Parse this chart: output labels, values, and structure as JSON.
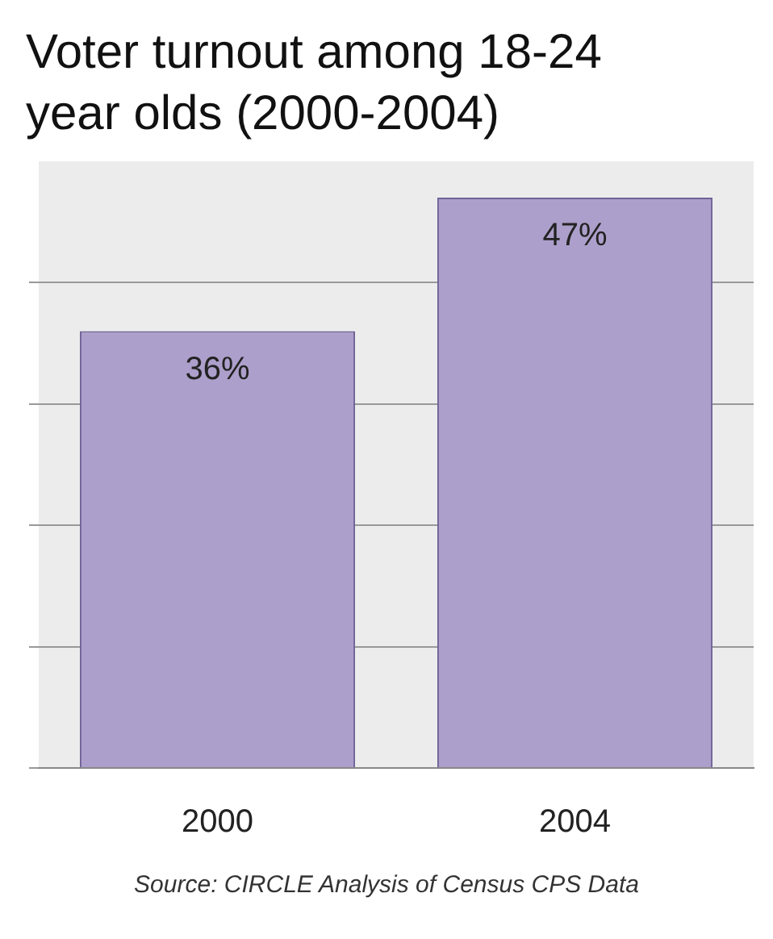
{
  "chart_data": {
    "type": "bar",
    "title": "Voter turnout among 18-24 year olds (2000-2004)",
    "categories": [
      "2000",
      "2004"
    ],
    "values": [
      36,
      47
    ],
    "color": "#ad9fcb",
    "data_labels": true,
    "value_labels": [
      "36%",
      "47%"
    ],
    "ylim": [
      0,
      50
    ],
    "yticks": [
      {
        "value": 0,
        "label": null
      },
      {
        "value": 10,
        "label": null
      },
      {
        "value": 20,
        "label": null
      },
      {
        "value": 30,
        "label": null
      },
      {
        "value": 40,
        "label": null
      }
    ],
    "tick_labels": "x",
    "grid": "y",
    "annotations": [
      "Source: CIRCLE Analysis of Census CPS Data"
    ]
  }
}
